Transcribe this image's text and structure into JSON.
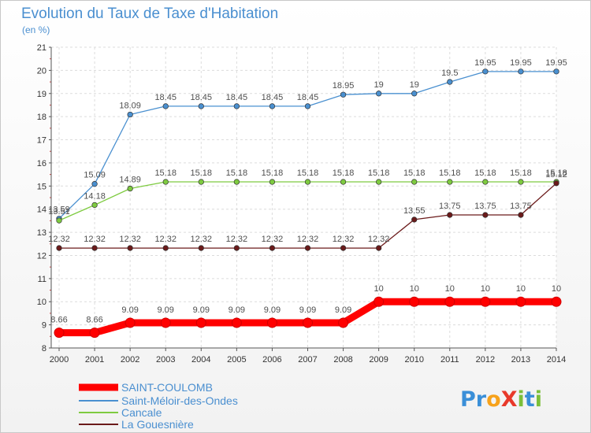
{
  "chart_data": {
    "type": "line",
    "title": "Evolution du Taux de Taxe d'Habitation",
    "subtitle": "(en %)",
    "x": [
      "2000",
      "2001",
      "2002",
      "2003",
      "2004",
      "2005",
      "2006",
      "2007",
      "2008",
      "2009",
      "2010",
      "2011",
      "2012",
      "2013",
      "2014"
    ],
    "ylim": [
      8,
      21
    ],
    "yticks": [
      8,
      9,
      10,
      11,
      12,
      13,
      14,
      15,
      16,
      17,
      18,
      19,
      20,
      21
    ],
    "grid": true,
    "legend_position": "bottom-left",
    "series": [
      {
        "name": "SAINT-COULOMB",
        "color": "#ff0000",
        "values": [
          8.66,
          8.66,
          9.09,
          9.09,
          9.09,
          9.09,
          9.09,
          9.09,
          9.09,
          10,
          10,
          10,
          10,
          10,
          10
        ],
        "labels": [
          "8.66",
          "8.66",
          "9.09",
          "9.09",
          "9.09",
          "9.09",
          "9.09",
          "9.09",
          "9.09",
          "10",
          "10",
          "10",
          "10",
          "10",
          "10"
        ]
      },
      {
        "name": "Saint-Méloir-des-Ondes",
        "color": "#4a90d0",
        "values": [
          13.59,
          15.09,
          18.09,
          18.45,
          18.45,
          18.45,
          18.45,
          18.45,
          18.95,
          19,
          19,
          19.5,
          19.95,
          19.95,
          19.95
        ],
        "labels": [
          "13.59",
          "15.09",
          "18.09",
          "18.45",
          "18.45",
          "18.45",
          "18.45",
          "18.45",
          "18.95",
          "19",
          "19",
          "19.5",
          "19.95",
          "19.95",
          "19.95"
        ]
      },
      {
        "name": "Cancale",
        "color": "#7ecb40",
        "values": [
          13.51,
          14.18,
          14.89,
          15.18,
          15.18,
          15.18,
          15.18,
          15.18,
          15.18,
          15.18,
          15.18,
          15.18,
          15.18,
          15.18,
          15.18
        ],
        "labels": [
          "13.51",
          "14.18",
          "14.89",
          "15.18",
          "15.18",
          "15.18",
          "15.18",
          "15.18",
          "15.18",
          "15.18",
          "15.18",
          "15.18",
          "15.18",
          "15.18",
          "15.18"
        ]
      },
      {
        "name": "La Gouesnière",
        "color": "#6b1a1a",
        "values": [
          12.32,
          12.32,
          12.32,
          12.32,
          12.32,
          12.32,
          12.32,
          12.32,
          12.32,
          12.32,
          13.55,
          13.75,
          13.75,
          13.75,
          15.12
        ],
        "labels": [
          "12.32",
          "12.32",
          "12.32",
          "12.32",
          "12.32",
          "12.32",
          "12.32",
          "12.32",
          "12.32",
          "12.32",
          "13.55",
          "13.75",
          "13.75",
          "13.75",
          "15.12"
        ]
      }
    ]
  },
  "logo": {
    "text": "ProXiti",
    "letters": [
      "P",
      "r",
      "o",
      "X",
      "i",
      "t",
      "i"
    ],
    "colors": [
      "#3a8fd8",
      "#3a8fd8",
      "#f7a21b",
      "#e8392a",
      "#7bbf3a",
      "#3a8fd8",
      "#7bbf3a"
    ]
  }
}
